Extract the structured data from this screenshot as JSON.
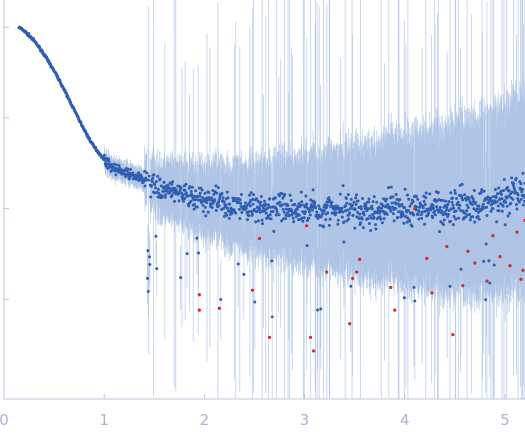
{
  "chart_data": {
    "type": "scatter",
    "title": "",
    "xlabel": "",
    "ylabel": "",
    "xlim": [
      0,
      5.2
    ],
    "ylim_log10": [
      -4.7,
      -0.3
    ],
    "y_scale": "log",
    "y_tick_labels_shown": false,
    "grid": false,
    "legend": "none",
    "colors": {
      "axis": "#bcc6dc",
      "points": "#2f5fb3",
      "error_bars": "#a8bfe3",
      "outliers": "#d62a2a",
      "tick_label": "#aab4cc"
    },
    "x_ticks": [
      {
        "value": 0,
        "label": "0"
      },
      {
        "value": 1,
        "label": "1"
      },
      {
        "value": 2,
        "label": "2"
      },
      {
        "value": 3,
        "label": "3"
      },
      {
        "value": 4,
        "label": "4"
      },
      {
        "value": 5,
        "label": "5"
      }
    ],
    "y_ticks_log10": [
      -0.6,
      -1.6,
      -2.6,
      -3.6
    ],
    "series": [
      {
        "role": "measured",
        "x": [
          0.15,
          0.2,
          0.25,
          0.3,
          0.35,
          0.4,
          0.45,
          0.5,
          0.55,
          0.6,
          0.65,
          0.7,
          0.75,
          0.8,
          0.85,
          0.9,
          0.95,
          1.0,
          1.05,
          1.1,
          1.2,
          1.3,
          1.4,
          1.6,
          1.8,
          2.0,
          2.2,
          2.4,
          2.6,
          2.8,
          3.0,
          3.2,
          3.4,
          3.6,
          3.8,
          4.0,
          4.2,
          4.4,
          4.6,
          4.8,
          5.0,
          5.2
        ],
        "log10_y": [
          -0.6,
          -0.64,
          -0.69,
          -0.75,
          -0.82,
          -0.9,
          -0.99,
          -1.08,
          -1.18,
          -1.29,
          -1.4,
          -1.51,
          -1.62,
          -1.73,
          -1.83,
          -1.92,
          -1.99,
          -2.06,
          -2.12,
          -2.16,
          -2.2,
          -2.24,
          -2.29,
          -2.39,
          -2.45,
          -2.49,
          -2.55,
          -2.57,
          -2.58,
          -2.6,
          -2.62,
          -2.63,
          -2.62,
          -2.63,
          -2.61,
          -2.6,
          -2.59,
          -2.58,
          -2.56,
          -2.53,
          -2.5,
          -2.45
        ]
      },
      {
        "role": "outliers",
        "x": [
          1.95,
          1.95,
          2.15,
          2.48,
          2.55,
          2.65,
          3.02,
          3.06,
          3.09,
          3.22,
          3.45,
          3.48,
          3.52,
          3.55,
          3.86,
          3.9,
          4.1,
          4.22,
          4.27,
          4.42,
          4.48,
          4.58,
          4.63,
          4.7,
          4.82,
          4.88,
          4.95,
          5.05,
          5.12,
          5.16,
          5.18,
          5.2
        ],
        "log10_y": [
          -3.55,
          -3.72,
          -3.7,
          -3.5,
          -2.93,
          -4.02,
          -2.79,
          -4.02,
          -4.17,
          -3.3,
          -3.87,
          -3.37,
          -3.3,
          -3.16,
          -3.47,
          -3.72,
          -2.6,
          -3.15,
          -3.53,
          -3.02,
          -3.99,
          -3.45,
          -3.07,
          -3.2,
          -3.4,
          -2.9,
          -3.13,
          -3.23,
          -2.86,
          -3.38,
          -3.28,
          -2.73
        ]
      }
    ]
  }
}
